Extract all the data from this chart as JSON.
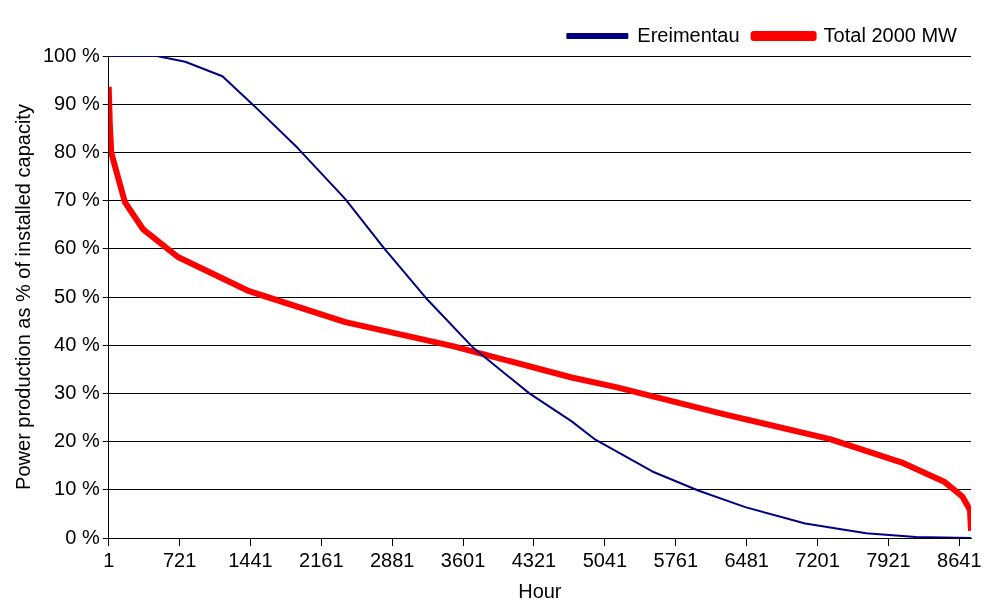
{
  "chart_data": {
    "type": "line",
    "xlabel": "Hour",
    "ylabel": "Power production as % of installed capacity",
    "xlim": [
      1,
      8760
    ],
    "xticks": [
      1,
      721,
      1441,
      2161,
      2881,
      3601,
      4321,
      5041,
      5761,
      6481,
      7201,
      7921,
      8641
    ],
    "ylim": [
      0,
      100
    ],
    "yticks": [
      {
        "value": 0,
        "label": "0 %"
      },
      {
        "value": 10,
        "label": "10 %"
      },
      {
        "value": 20,
        "label": "20 %"
      },
      {
        "value": 30,
        "label": "30 %"
      },
      {
        "value": 40,
        "label": "40 %"
      },
      {
        "value": 50,
        "label": "50 %"
      },
      {
        "value": 60,
        "label": "60 %"
      },
      {
        "value": 70,
        "label": "70 %"
      },
      {
        "value": 80,
        "label": "80 %"
      },
      {
        "value": 90,
        "label": "90 %"
      },
      {
        "value": 100,
        "label": "100 %"
      }
    ],
    "grid": "y",
    "legend": "top right",
    "marker": "none",
    "line_style": "solid",
    "series": [
      {
        "name": "Ereimentau",
        "color": "#000080",
        "x": [
          1,
          490,
          778,
          1156,
          1471,
          1921,
          2405,
          2803,
          3223,
          3707,
          4274,
          4704,
          4945,
          5523,
          5995,
          6467,
          7076,
          7696,
          8199,
          8760
        ],
        "values": [
          100,
          100,
          98.8,
          95.8,
          89.8,
          80.9,
          70.3,
          60,
          49.8,
          39.4,
          30,
          24.2,
          20.4,
          13.8,
          9.8,
          6.4,
          3,
          1,
          0.2,
          0
        ]
      },
      {
        "name": "Total 2000 MW",
        "color": "#ff0000",
        "x": [
          1,
          12,
          27,
          54,
          165,
          348,
          704,
          1428,
          2405,
          3496,
          4704,
          5155,
          6247,
          7328,
          8052,
          8493,
          8672,
          8750,
          8760
        ],
        "values": [
          93.6,
          86,
          80,
          77.9,
          69.7,
          64.1,
          58.3,
          51.2,
          44.8,
          39.8,
          33.3,
          31.3,
          25.7,
          20.5,
          15.7,
          11.6,
          8.6,
          5.8,
          1.5
        ]
      }
    ]
  }
}
